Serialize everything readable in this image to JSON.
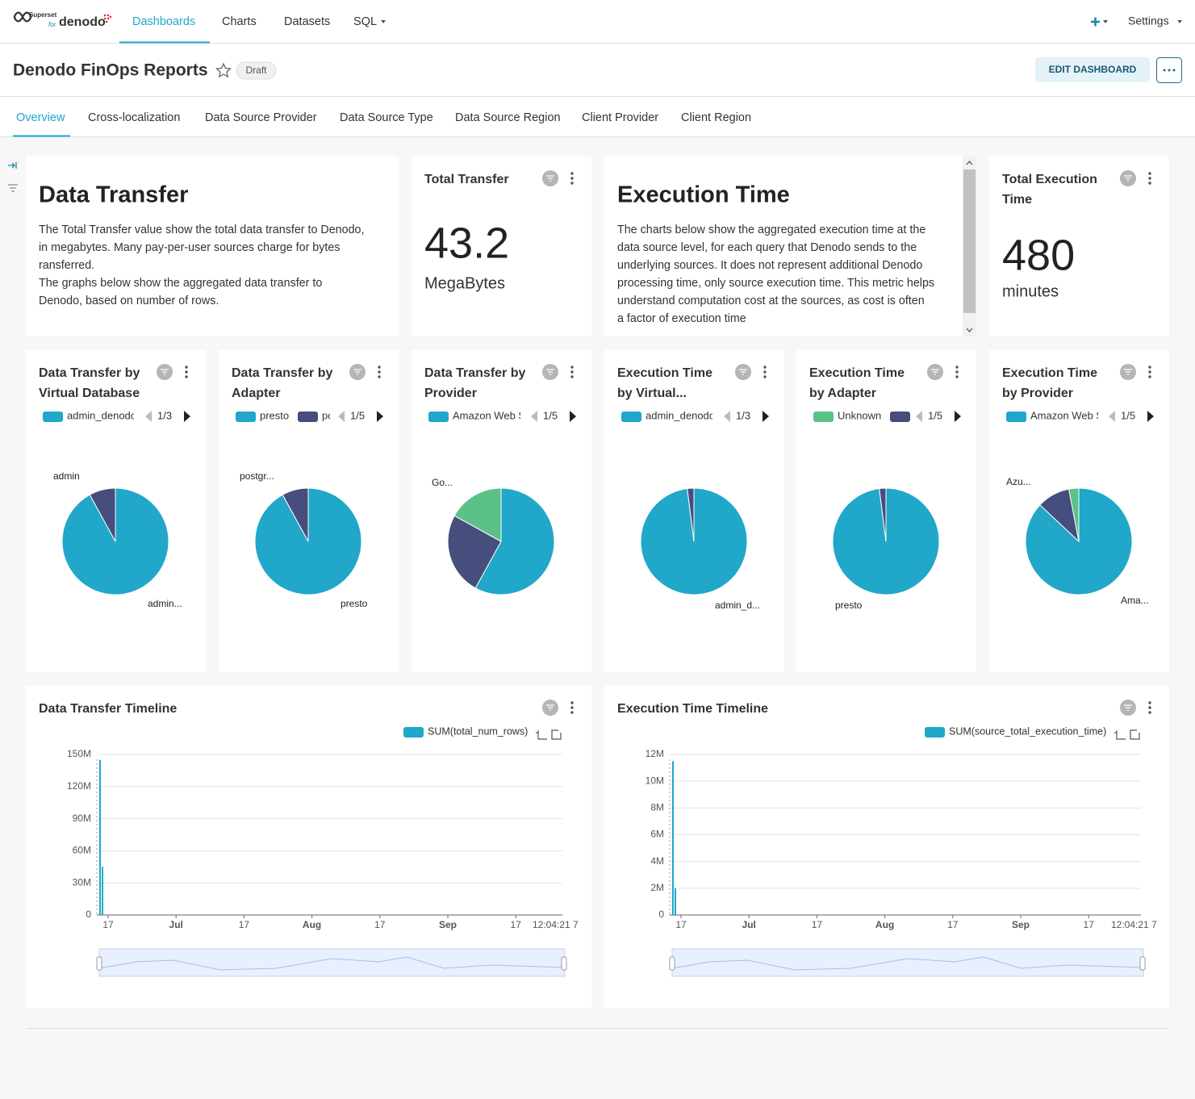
{
  "nav": {
    "logo": {
      "brand": "Superset",
      "for": "for",
      "name": "denodo"
    },
    "links": [
      "Dashboards",
      "Charts",
      "Datasets",
      "SQL"
    ],
    "settings": "Settings"
  },
  "header": {
    "title": "Denodo FinOps Reports",
    "status": "Draft",
    "edit_button": "EDIT DASHBOARD"
  },
  "tabs": [
    "Overview",
    "Cross-localization",
    "Data Source Provider",
    "Data Source Type",
    "Data Source Region",
    "Client Provider",
    "Client Region"
  ],
  "markdown": [
    {
      "title": "Data Transfer",
      "lines": [
        "The Total Transfer value show the total data transfer to Denodo,",
        "in megabytes. Many pay-per-user sources charge for bytes",
        "ransferred.",
        "The graphs below show the aggregated data transfer to",
        "Denodo, based on number of rows."
      ]
    },
    {
      "title": "Execution Time",
      "lines": [
        "The charts below show the aggregated execution time at the",
        "data source level, for each query that Denodo sends to the",
        "underlying sources. It does not represent additional Denodo",
        "processing time, only source execution time. This metric helps",
        "understand computation cost at the sources, as cost is often",
        "a factor of execution time"
      ]
    }
  ],
  "big_numbers": [
    {
      "title": [
        "Total Transfer"
      ],
      "value": 43.2,
      "unit": "MegaBytes"
    },
    {
      "title": [
        "Total Execution",
        "Time"
      ],
      "value": 480,
      "unit": "minutes"
    }
  ],
  "pies": [
    {
      "title": [
        "Data Transfer by",
        "Virtual Database"
      ],
      "legend": [
        {
          "name": "admin_denodo",
          "color": "#20a7c9"
        }
      ],
      "pager": "1/3",
      "slices": [
        {
          "value": 92,
          "color": "#20a7c9",
          "label": "admin..."
        },
        {
          "value": 8,
          "color": "#454e7c",
          "label": "admin"
        }
      ]
    },
    {
      "title": [
        "Data Transfer by",
        "Adapter"
      ],
      "legend": [
        {
          "name": "presto",
          "color": "#20a7c9"
        },
        {
          "name": "postgres",
          "color": "#454e7c"
        }
      ],
      "pager": "1/5",
      "slices": [
        {
          "value": 92,
          "color": "#20a7c9",
          "label": "presto"
        },
        {
          "value": 8,
          "color": "#454e7c",
          "label": "postgr..."
        }
      ]
    },
    {
      "title": [
        "Data Transfer by",
        "Provider"
      ],
      "legend": [
        {
          "name": "Amazon Web Services",
          "color": "#20a7c9"
        }
      ],
      "pager": "1/5",
      "slices": [
        {
          "value": 58,
          "color": "#20a7c9"
        },
        {
          "value": 25,
          "color": "#454e7c"
        },
        {
          "value": 17,
          "color": "#5ac189",
          "label": "Go..."
        }
      ]
    },
    {
      "title": [
        "Execution Time",
        "by Virtual..."
      ],
      "legend": [
        {
          "name": "admin_denodo",
          "color": "#20a7c9"
        }
      ],
      "pager": "1/3",
      "slices": [
        {
          "value": 98,
          "color": "#20a7c9",
          "label": "admin_d..."
        },
        {
          "value": 2,
          "color": "#454e7c"
        }
      ]
    },
    {
      "title": [
        "Execution Time",
        "by Adapter"
      ],
      "legend": [
        {
          "name": "Unknown",
          "color": "#5ac189"
        },
        {
          "color": "#454e7c"
        }
      ],
      "pager": "1/5",
      "slices": [
        {
          "value": 98,
          "color": "#20a7c9",
          "label": "presto"
        },
        {
          "value": 2,
          "color": "#454e7c"
        }
      ]
    },
    {
      "title": [
        "Execution Time",
        "by Provider"
      ],
      "legend": [
        {
          "name": "Amazon Web Services",
          "color": "#20a7c9"
        }
      ],
      "pager": "1/5",
      "slices": [
        {
          "value": 87,
          "color": "#20a7c9",
          "label": "Ama..."
        },
        {
          "value": 10,
          "color": "#454e7c"
        },
        {
          "value": 3,
          "color": "#5ac189",
          "label": "Azu..."
        }
      ]
    }
  ],
  "timelines": [
    {
      "title": "Data Transfer Timeline",
      "series": {
        "name": "SUM(total_num_rows)",
        "color": "#20a7c9",
        "values": [
          145000000,
          45000000
        ]
      },
      "ylim": [
        0,
        150000000
      ],
      "yticks": [
        0,
        {
          "value": 30000000,
          "label": "30M"
        },
        {
          "value": 60000000,
          "label": "60M"
        },
        {
          "value": 90000000,
          "label": "90M"
        },
        {
          "value": 120000000,
          "label": "120M"
        },
        {
          "value": 150000000,
          "label": "150M"
        }
      ],
      "xticks": [
        "17",
        "Jul",
        "17",
        "Aug",
        "17",
        "Sep",
        "17",
        "12:04:21 7"
      ]
    },
    {
      "title": "Execution Time Timeline",
      "series": {
        "name": "SUM(source_total_execution_time)",
        "color": "#20a7c9",
        "values": [
          11500000,
          2000000
        ]
      },
      "ylim": [
        0,
        12000000
      ],
      "yticks": [
        0,
        {
          "value": 2000000,
          "label": "2M"
        },
        {
          "value": 4000000,
          "label": "4M"
        },
        {
          "value": 6000000,
          "label": "6M"
        },
        {
          "value": 8000000,
          "label": "8M"
        },
        {
          "value": 10000000,
          "label": "10M"
        },
        {
          "value": 12000000,
          "label": "12M"
        }
      ],
      "xticks": [
        "17",
        "Jul",
        "17",
        "Aug",
        "17",
        "Sep",
        "17",
        "12:04:21 7"
      ]
    }
  ]
}
